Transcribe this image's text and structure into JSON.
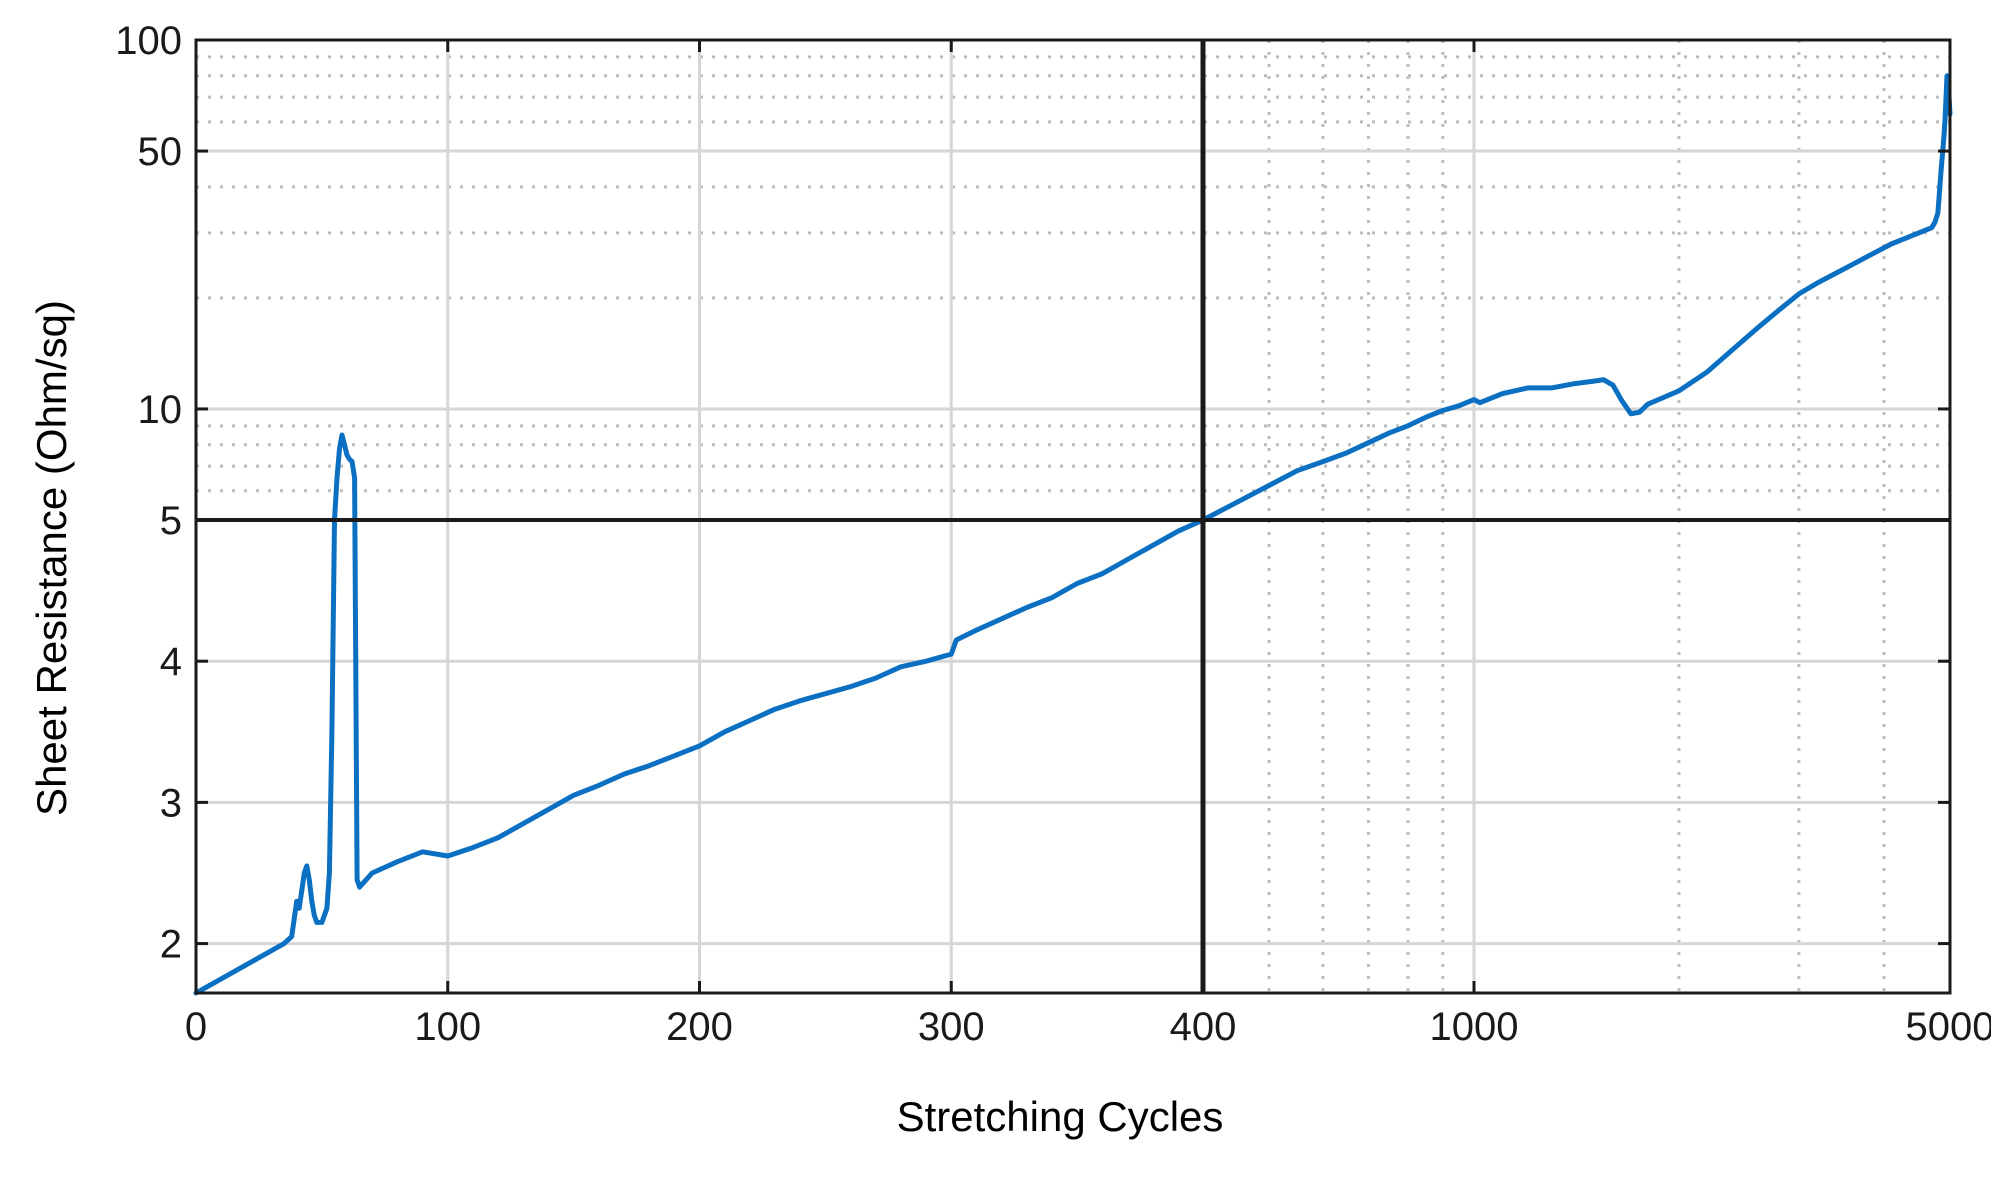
{
  "chart_data": {
    "type": "line",
    "title": "",
    "xlabel": "Stretching Cycles",
    "ylabel": "Sheet Resistance (Ohm/sq)",
    "grid": true,
    "legend": "none",
    "series_color": "#0b6fc2",
    "axes": {
      "x_linear_range": [
        0,
        400
      ],
      "x_log_range": [
        400,
        5000
      ],
      "y_linear_range": [
        1.65,
        5
      ],
      "y_log_range": [
        5,
        100
      ]
    },
    "x_tick_labels": [
      "0",
      "100",
      "200",
      "300",
      "400",
      "1000",
      "5000"
    ],
    "x_tick_values": [
      0,
      100,
      200,
      300,
      400,
      1000,
      5000
    ],
    "y_tick_labels": [
      "2",
      "3",
      "4",
      "5",
      "10",
      "50",
      "100"
    ],
    "y_tick_values": [
      2,
      3,
      4,
      5,
      10,
      50,
      100
    ],
    "series": [
      {
        "x": [
          0,
          5,
          15,
          25,
          35,
          38,
          40,
          41,
          43,
          44,
          45,
          46,
          47,
          48,
          50,
          52,
          53,
          54,
          55,
          56,
          57,
          58,
          59,
          60,
          61,
          62,
          63,
          64,
          65,
          70,
          80,
          90,
          100,
          110,
          120,
          130,
          140,
          150,
          160,
          170,
          180,
          190,
          200,
          210,
          220,
          230,
          240,
          250,
          260,
          270,
          280,
          290,
          300,
          302,
          310,
          320,
          330,
          340,
          350,
          360,
          370,
          380,
          390,
          400,
          450,
          500,
          550,
          600,
          650,
          700,
          750,
          800,
          850,
          900,
          950,
          1000,
          1020,
          1100,
          1200,
          1300,
          1400,
          1500,
          1550,
          1600,
          1650,
          1700,
          1750,
          1800,
          2000,
          2200,
          2400,
          2600,
          2800,
          3000,
          3200,
          3500,
          3800,
          4100,
          4400,
          4600,
          4700,
          4750,
          4800,
          4850,
          4900,
          4920,
          4950,
          4980,
          5000
        ],
        "y": [
          1.65,
          1.7,
          1.8,
          1.9,
          2.0,
          2.05,
          2.3,
          2.25,
          2.5,
          2.55,
          2.45,
          2.3,
          2.2,
          2.15,
          2.15,
          2.25,
          2.5,
          3.5,
          5.0,
          6.5,
          7.8,
          8.5,
          8.0,
          7.5,
          7.3,
          7.2,
          6.5,
          2.45,
          2.4,
          2.5,
          2.58,
          2.65,
          2.62,
          2.68,
          2.75,
          2.85,
          2.95,
          3.05,
          3.12,
          3.2,
          3.26,
          3.33,
          3.4,
          3.5,
          3.58,
          3.66,
          3.72,
          3.77,
          3.82,
          3.88,
          3.96,
          4.0,
          4.05,
          4.15,
          4.22,
          4.3,
          4.38,
          4.45,
          4.55,
          4.62,
          4.72,
          4.82,
          4.92,
          5.0,
          5.6,
          6.2,
          6.8,
          7.2,
          7.6,
          8.1,
          8.6,
          9.0,
          9.5,
          9.9,
          10.2,
          10.6,
          10.4,
          11.0,
          11.4,
          11.4,
          11.7,
          11.9,
          12.0,
          11.6,
          10.5,
          9.7,
          9.8,
          10.3,
          11.2,
          12.6,
          14.5,
          16.5,
          18.5,
          20.5,
          22.0,
          24.0,
          26.0,
          28.0,
          29.5,
          30.5,
          31.0,
          32.0,
          34.0,
          44.0,
          55.0,
          62.0,
          80.0,
          72.0,
          63.0
        ]
      }
    ]
  }
}
